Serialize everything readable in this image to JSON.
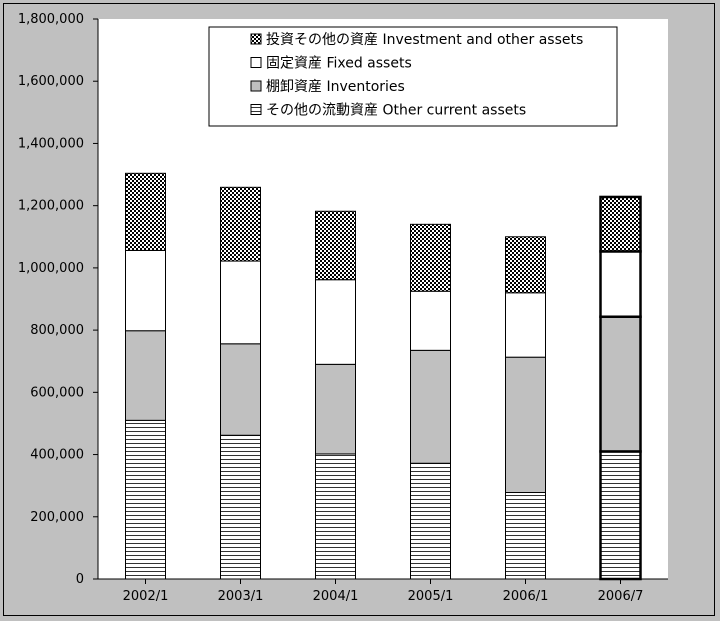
{
  "chart_data": {
    "type": "bar",
    "stacked": true,
    "categories": [
      "2002/1",
      "2003/1",
      "2004/1",
      "2005/1",
      "2006/1",
      "2006/7"
    ],
    "series": [
      {
        "name": "その他の流動資産 Other current assets",
        "pattern": "horizontal-lines",
        "values": [
          510000,
          462000,
          402000,
          372000,
          278000,
          410000
        ]
      },
      {
        "name": "棚卸資産 Inventories",
        "pattern": "solid-gray",
        "values": [
          288000,
          294000,
          288000,
          363000,
          435000,
          433000
        ]
      },
      {
        "name": "固定資産 Fixed assets",
        "pattern": "white",
        "values": [
          258000,
          266000,
          272000,
          190000,
          207000,
          210000
        ]
      },
      {
        "name": "投資その他の資産 Investment and other assets",
        "pattern": "crosshatch",
        "values": [
          248000,
          237000,
          220000,
          215000,
          180000,
          175000
        ]
      }
    ],
    "highlighted_category": "2006/7",
    "ylim": [
      0,
      1800000
    ],
    "yticks": [
      "0",
      "200,000",
      "400,000",
      "600,000",
      "800,000",
      "1,000,000",
      "1,200,000",
      "1,400,000",
      "1,600,000",
      "1,800,000"
    ],
    "yticks_values": [
      0,
      200000,
      400000,
      600000,
      800000,
      1000000,
      1200000,
      1400000,
      1600000,
      1800000
    ],
    "legend_order": [
      3,
      2,
      1,
      0
    ],
    "legend_position": "top-right",
    "grid": false,
    "colors": {
      "plot_background": "#ffffff",
      "outer_background": "#c0c0c0",
      "inventories_fill": "#c0c0c0",
      "pattern_ink": "#000000"
    }
  }
}
